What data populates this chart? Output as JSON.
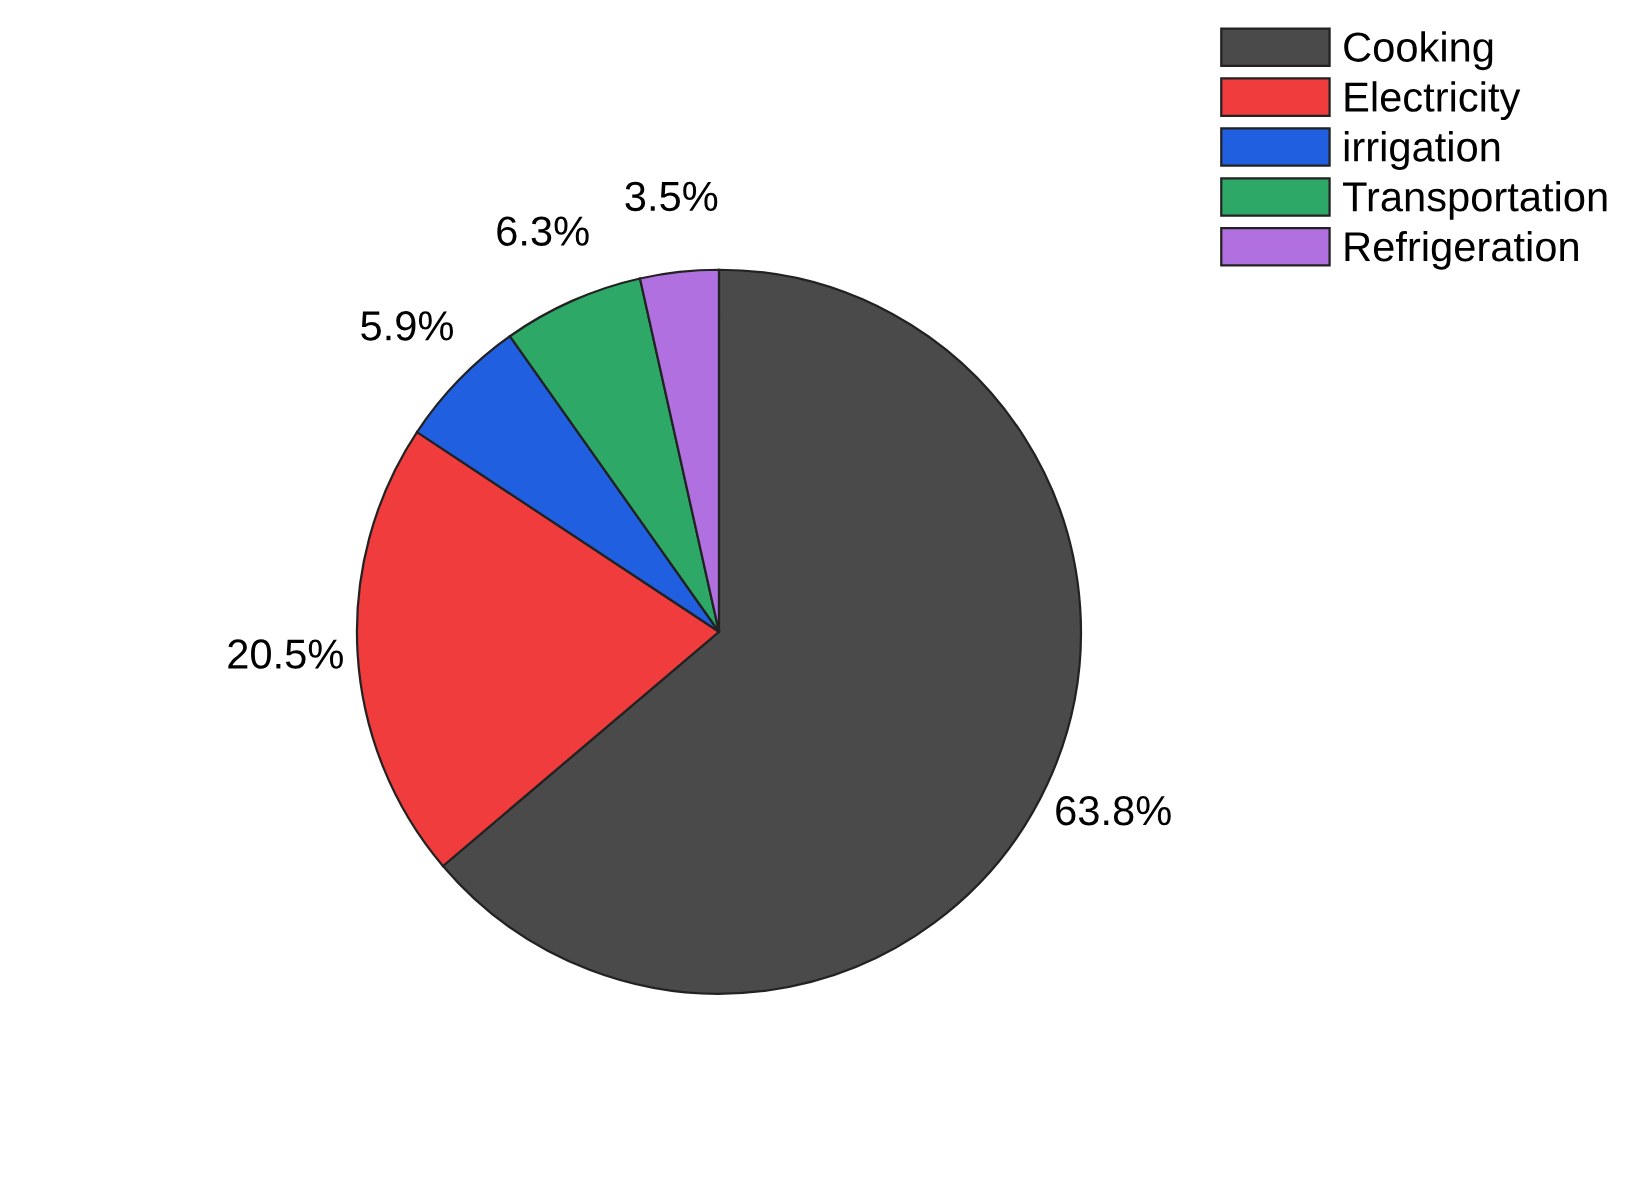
{
  "chart_data": {
    "type": "pie",
    "categories": [
      "Cooking",
      "Electricity",
      "irrigation",
      "Transportation",
      "Refrigeration"
    ],
    "values": [
      63.8,
      20.5,
      5.9,
      6.3,
      3.5
    ],
    "value_labels": [
      "63.8%",
      "20.5%",
      "5.9%",
      "6.3%",
      "3.5%"
    ],
    "colors": [
      "#4a4a4a",
      "#f03c3c",
      "#1f5fe0",
      "#2ea866",
      "#b070e0"
    ],
    "legend": "top right"
  }
}
